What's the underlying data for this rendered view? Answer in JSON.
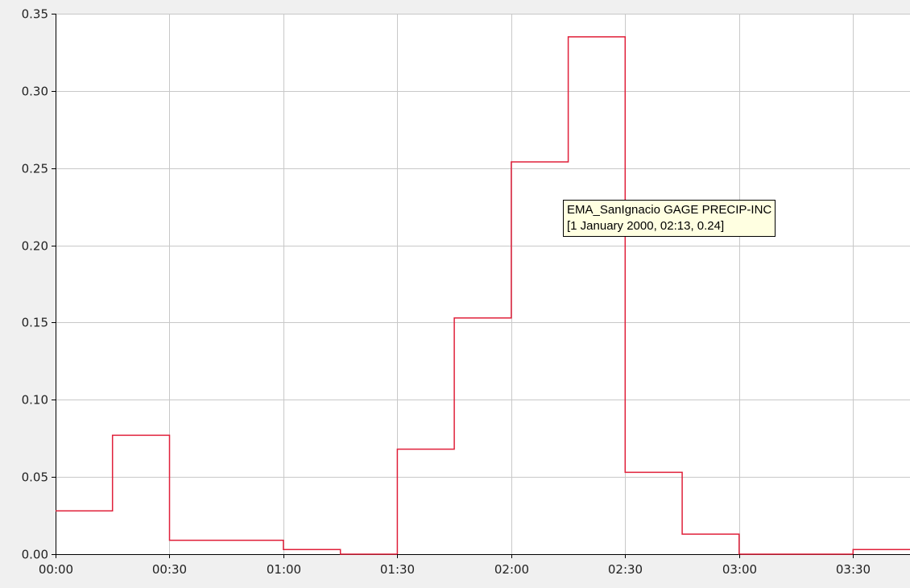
{
  "chart_data": {
    "type": "line",
    "step": true,
    "series": [
      {
        "color": "#e0203a",
        "points": [
          [
            "00:00",
            0.028
          ],
          [
            "00:15",
            0.077
          ],
          [
            "00:30",
            0.009
          ],
          [
            "00:45",
            0.009
          ],
          [
            "01:00",
            0.003
          ],
          [
            "01:15",
            0.0
          ],
          [
            "01:30",
            0.068
          ],
          [
            "01:45",
            0.153
          ],
          [
            "02:00",
            0.254
          ],
          [
            "02:15",
            0.335
          ],
          [
            "02:30",
            0.053
          ],
          [
            "02:45",
            0.013
          ],
          [
            "03:00",
            0.0
          ],
          [
            "03:15",
            0.0
          ],
          [
            "03:30",
            0.003
          ]
        ]
      }
    ],
    "x_ticks": [
      "00:00",
      "00:30",
      "01:00",
      "01:30",
      "02:00",
      "02:30",
      "03:00",
      "03:30"
    ],
    "x_range": [
      "00:00",
      "03:45"
    ],
    "y_ticks": [
      "0.00",
      "0.05",
      "0.10",
      "0.15",
      "0.20",
      "0.25",
      "0.30",
      "0.35"
    ],
    "ylim": [
      0,
      0.35
    ],
    "grid": true,
    "plot_background": "#ffffff",
    "grid_color": "#c8c8c8"
  },
  "tooltip": {
    "line1": "EMA_SanIgnacio GAGE PRECIP-INC",
    "line2": "[1 January 2000, 02:13, 0.24]"
  }
}
